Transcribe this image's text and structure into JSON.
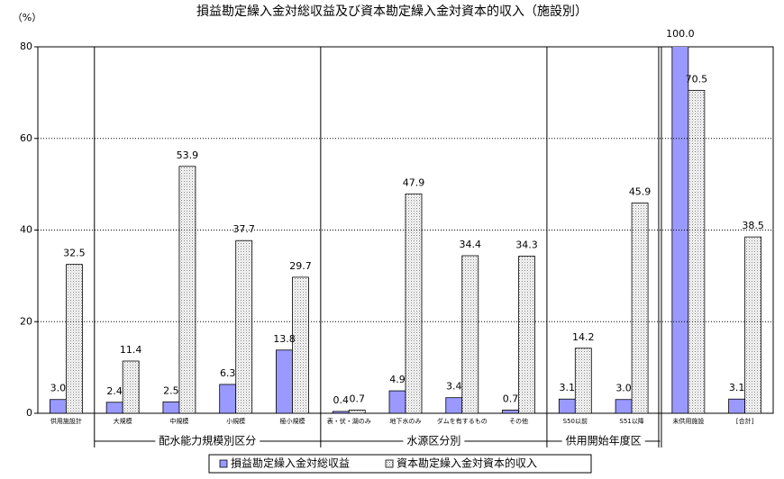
{
  "chart_data": {
    "type": "bar",
    "title": "損益勘定繰入金対総収益及び資本勘定繰入金対資本的収入（施設別）",
    "y_label": "（%）",
    "categories": [
      "供用施設計",
      "大規模",
      "中規模",
      "小規模",
      "極小規模",
      "表・伏・湖のみ",
      "地下水のみ",
      "ダムを有するもの",
      "その他",
      "S50以前",
      "S51以降",
      "未供用施設",
      "[合計]"
    ],
    "series": [
      {
        "name": "損益勘定繰入金対総収益",
        "color": "#9999ff",
        "values": [
          3.0,
          2.4,
          2.5,
          6.3,
          13.8,
          0.4,
          4.9,
          3.4,
          0.7,
          3.1,
          3.0,
          100.0,
          3.1
        ],
        "value_labels": [
          "3.0",
          "2.4",
          "2.5",
          "6.3",
          "13.8",
          "0.4",
          "4.9",
          "3.4",
          "0.7",
          "3.1",
          "3.0",
          "100.0",
          "3.1"
        ]
      },
      {
        "name": "資本勘定繰入金対資本的収入",
        "color": "#c0c0c0",
        "values": [
          32.5,
          11.4,
          53.9,
          37.7,
          29.7,
          0.7,
          47.9,
          34.4,
          34.3,
          14.2,
          45.9,
          70.5,
          38.5
        ],
        "value_labels": [
          "32.5",
          "11.4",
          "53.9",
          "37.7",
          "29.7",
          "0.7",
          "47.9",
          "34.4",
          "34.3",
          "14.2",
          "45.9",
          "70.5",
          "38.5"
        ]
      }
    ],
    "groups": [
      {
        "name": "配水能力規模別区分",
        "from": 1,
        "to": 4
      },
      {
        "name": "水源区分別",
        "from": 5,
        "to": 8
      },
      {
        "name": "供用開始年度区",
        "from": 9,
        "to": 10
      }
    ],
    "ylim": [
      0,
      80
    ],
    "yticks": [
      0,
      20,
      40,
      60,
      80
    ],
    "grid": true
  }
}
